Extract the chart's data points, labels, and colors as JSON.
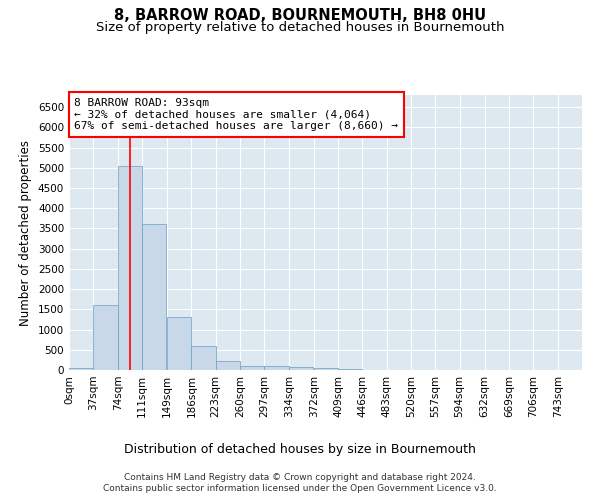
{
  "title": "8, BARROW ROAD, BOURNEMOUTH, BH8 0HU",
  "subtitle": "Size of property relative to detached houses in Bournemouth",
  "xlabel": "Distribution of detached houses by size in Bournemouth",
  "ylabel": "Number of detached properties",
  "footer_line1": "Contains HM Land Registry data © Crown copyright and database right 2024.",
  "footer_line2": "Contains public sector information licensed under the Open Government Licence v3.0.",
  "annotation_line1": "8 BARROW ROAD: 93sqm",
  "annotation_line2": "← 32% of detached houses are smaller (4,064)",
  "annotation_line3": "67% of semi-detached houses are larger (8,660) →",
  "bar_color": "#c8d8e8",
  "bar_edge_color": "#6a9ec0",
  "red_line_x": 93,
  "categories": [
    "0sqm",
    "37sqm",
    "74sqm",
    "111sqm",
    "149sqm",
    "186sqm",
    "223sqm",
    "260sqm",
    "297sqm",
    "334sqm",
    "372sqm",
    "409sqm",
    "446sqm",
    "483sqm",
    "520sqm",
    "557sqm",
    "594sqm",
    "632sqm",
    "669sqm",
    "706sqm",
    "743sqm"
  ],
  "bin_left_edges": [
    0,
    37,
    74,
    111,
    149,
    186,
    223,
    260,
    297,
    334,
    372,
    409,
    446,
    483,
    520,
    557,
    594,
    632,
    669,
    706,
    743
  ],
  "bar_heights": [
    50,
    1600,
    5050,
    3600,
    1300,
    600,
    230,
    110,
    90,
    70,
    50,
    30,
    10,
    5,
    3,
    2,
    1,
    1,
    0,
    0
  ],
  "bin_width": 37,
  "ylim": [
    0,
    6800
  ],
  "yticks": [
    0,
    500,
    1000,
    1500,
    2000,
    2500,
    3000,
    3500,
    4000,
    4500,
    5000,
    5500,
    6000,
    6500
  ],
  "background_color": "#ffffff",
  "plot_bg_color": "#dde8f0",
  "grid_color": "#ffffff",
  "title_fontsize": 10.5,
  "subtitle_fontsize": 9.5,
  "xlabel_fontsize": 9,
  "ylabel_fontsize": 8.5,
  "tick_fontsize": 7.5,
  "footer_fontsize": 6.5,
  "annotation_fontsize": 8
}
